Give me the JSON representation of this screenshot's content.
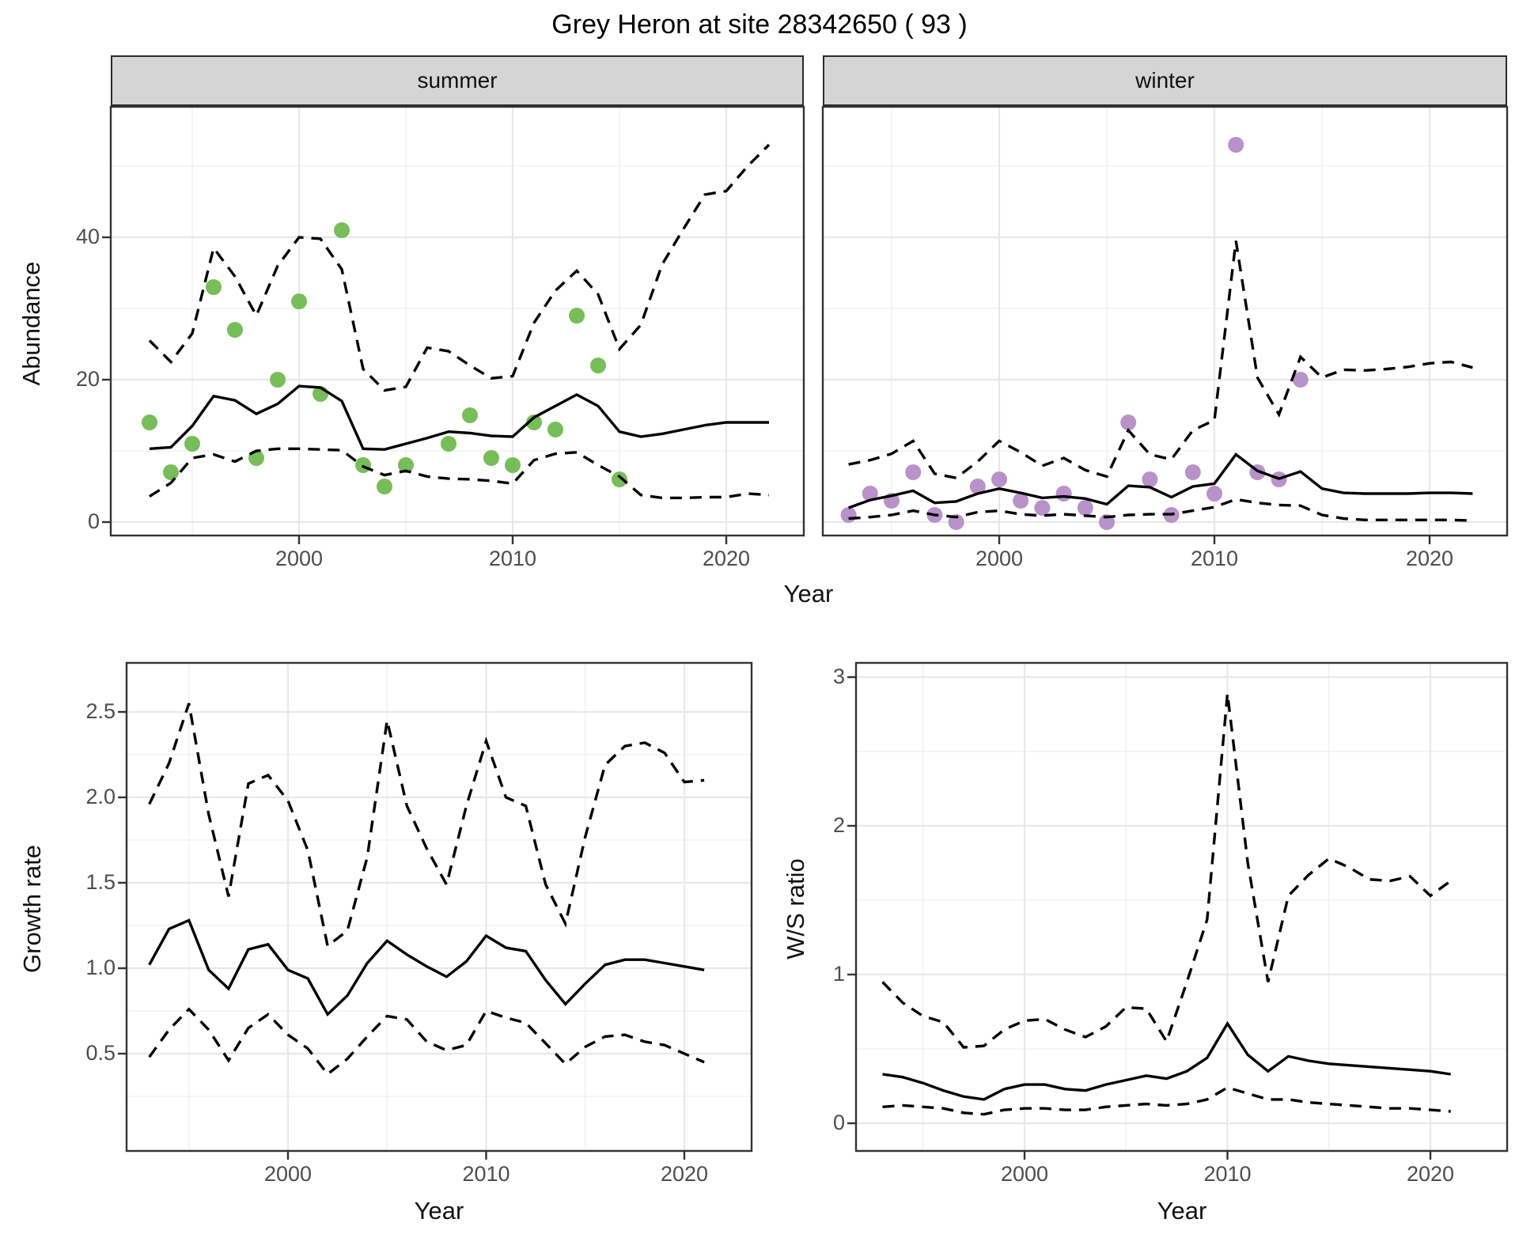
{
  "title": "Grey Heron at site 28342650 ( 93 )",
  "colors": {
    "summer_point": "#77bd59",
    "winter_point": "#b992c9",
    "line": "#000000",
    "grid_major": "#e8e8e8",
    "grid_minor": "#f2f2f2",
    "strip_bg": "#d5d5d5",
    "panel_border": "#333333",
    "axis_text": "#4d4d4d"
  },
  "top_row": {
    "facets": [
      "summer",
      "winter"
    ],
    "ylabel": "Abundance",
    "xlabel": "Year",
    "yticks": [
      "0",
      "20",
      "40"
    ],
    "xticks": [
      "2000",
      "2010",
      "2020"
    ]
  },
  "bottom_left": {
    "ylabel": "Growth rate",
    "xlabel": "Year",
    "yticks": [
      "0.5",
      "1.0",
      "1.5",
      "2.0",
      "2.5"
    ],
    "xticks": [
      "2000",
      "2010",
      "2020"
    ]
  },
  "bottom_right": {
    "ylabel": "W/S ratio",
    "xlabel": "Year",
    "yticks": [
      "0",
      "1",
      "2",
      "3"
    ],
    "xticks": [
      "2000",
      "2010",
      "2020"
    ]
  },
  "chart_data": [
    {
      "type": "line",
      "title": "summer abundance",
      "xlabel": "Year",
      "ylabel": "Abundance",
      "xlim": [
        1991.7,
        2023.6
      ],
      "ylim": [
        0,
        58
      ],
      "x_start": 1993,
      "points": [
        [
          1993,
          14
        ],
        [
          1994,
          7
        ],
        [
          1995,
          11
        ],
        [
          1996,
          33
        ],
        [
          1997,
          27
        ],
        [
          1998,
          9
        ],
        [
          1999,
          20
        ],
        [
          2000,
          31
        ],
        [
          2001,
          18
        ],
        [
          2002,
          41
        ],
        [
          2003,
          8
        ],
        [
          2004,
          5
        ],
        [
          2005,
          8
        ],
        [
          2007,
          11
        ],
        [
          2008,
          15
        ],
        [
          2009,
          9
        ],
        [
          2010,
          8
        ],
        [
          2011,
          14
        ],
        [
          2012,
          13
        ],
        [
          2013,
          29
        ],
        [
          2014,
          22
        ],
        [
          2015,
          6
        ]
      ],
      "series": [
        {
          "name": "fit",
          "style": "solid",
          "values": [
            10.3,
            10.5,
            13.5,
            17.7,
            17.1,
            15.2,
            16.6,
            19.1,
            18.9,
            17.0,
            10.3,
            10.2,
            11.0,
            11.8,
            12.7,
            12.5,
            12.1,
            12.0,
            14.7,
            16.3,
            17.9,
            16.3,
            12.7,
            12.0,
            12.4,
            13.0,
            13.6,
            14.0,
            14.0,
            14.0
          ]
        },
        {
          "name": "upper_ci",
          "style": "dashed",
          "values": [
            25.5,
            22.5,
            26.5,
            38.5,
            34.5,
            29.0,
            36.0,
            40.0,
            39.8,
            35.5,
            21.5,
            18.5,
            19.0,
            24.5,
            24.0,
            22.0,
            20.2,
            20.5,
            28.0,
            32.5,
            35.3,
            32.0,
            24.3,
            27.7,
            36.2,
            41.2,
            46.0,
            46.5,
            50.0,
            53.0
          ]
        },
        {
          "name": "lower_ci",
          "style": "dashed",
          "values": [
            3.6,
            5.5,
            9.0,
            9.5,
            8.5,
            10.0,
            10.3,
            10.3,
            10.2,
            10.1,
            7.8,
            6.6,
            7.2,
            6.4,
            6.1,
            6.0,
            5.8,
            5.4,
            8.7,
            9.6,
            9.8,
            8.0,
            6.4,
            3.8,
            3.4,
            3.4,
            3.5,
            3.5,
            4.0,
            3.8
          ]
        }
      ]
    },
    {
      "type": "line",
      "title": "winter abundance",
      "xlabel": "Year",
      "ylabel": "Abundance",
      "xlim": [
        1991.7,
        2023.6
      ],
      "ylim": [
        0,
        58
      ],
      "x_start": 1993,
      "points": [
        [
          1993,
          1
        ],
        [
          1994,
          4
        ],
        [
          1995,
          3
        ],
        [
          1996,
          7
        ],
        [
          1997,
          1
        ],
        [
          1998,
          0
        ],
        [
          1999,
          5
        ],
        [
          2000,
          6
        ],
        [
          2001,
          3
        ],
        [
          2002,
          2
        ],
        [
          2003,
          4
        ],
        [
          2004,
          2
        ],
        [
          2005,
          0
        ],
        [
          2006,
          14
        ],
        [
          2007,
          6
        ],
        [
          2008,
          1
        ],
        [
          2009,
          7
        ],
        [
          2010,
          4
        ],
        [
          2011,
          53
        ],
        [
          2012,
          7
        ],
        [
          2013,
          6
        ],
        [
          2014,
          20
        ]
      ],
      "series": [
        {
          "name": "fit",
          "style": "solid",
          "values": [
            2.0,
            3.1,
            3.7,
            4.4,
            2.7,
            2.9,
            4.0,
            4.7,
            4.1,
            3.4,
            3.6,
            3.3,
            2.5,
            5.1,
            4.9,
            3.5,
            5.0,
            5.4,
            9.5,
            7.2,
            6.1,
            7.1,
            4.7,
            4.1,
            4.0,
            4.0,
            4.0,
            4.1,
            4.1,
            4.0
          ]
        },
        {
          "name": "upper_ci",
          "style": "dashed",
          "values": [
            8.1,
            8.7,
            9.6,
            11.4,
            6.8,
            6.2,
            8.5,
            11.4,
            9.8,
            7.9,
            9.0,
            7.3,
            6.4,
            12.9,
            9.5,
            8.8,
            12.9,
            14.3,
            39.5,
            20.3,
            15.1,
            23.2,
            20.3,
            21.4,
            21.3,
            21.5,
            21.8,
            22.3,
            22.5,
            21.7
          ]
        },
        {
          "name": "lower_ci",
          "style": "dashed",
          "values": [
            0.5,
            0.7,
            1.0,
            1.6,
            1.0,
            0.7,
            1.4,
            1.6,
            1.1,
            0.9,
            1.1,
            0.9,
            0.7,
            1.0,
            1.1,
            1.1,
            1.6,
            2.1,
            3.2,
            2.7,
            2.4,
            2.3,
            1.0,
            0.5,
            0.3,
            0.3,
            0.3,
            0.3,
            0.3,
            0.2
          ]
        }
      ]
    },
    {
      "type": "line",
      "title": "growth rate",
      "xlabel": "Year",
      "ylabel": "Growth rate",
      "xlim": [
        1991.8,
        2023.4
      ],
      "ylim": [
        0.3,
        2.66
      ],
      "x_start": 1993,
      "series": [
        {
          "name": "fit",
          "style": "solid",
          "values": [
            1.02,
            1.23,
            1.28,
            0.99,
            0.88,
            1.11,
            1.14,
            0.99,
            0.94,
            0.73,
            0.84,
            1.03,
            1.16,
            1.08,
            1.01,
            0.95,
            1.04,
            1.19,
            1.12,
            1.1,
            0.93,
            0.79,
            0.91,
            1.02,
            1.05,
            1.05,
            1.03,
            1.01,
            0.99
          ]
        },
        {
          "name": "upper_ci",
          "style": "dashed",
          "values": [
            1.96,
            2.2,
            2.55,
            1.9,
            1.42,
            2.08,
            2.13,
            1.98,
            1.69,
            1.13,
            1.22,
            1.65,
            2.45,
            1.95,
            1.7,
            1.49,
            1.95,
            2.33,
            2.0,
            1.95,
            1.49,
            1.26,
            1.77,
            2.19,
            2.3,
            2.32,
            2.26,
            2.09,
            2.1
          ]
        },
        {
          "name": "lower_ci",
          "style": "dashed",
          "values": [
            0.48,
            0.64,
            0.76,
            0.64,
            0.46,
            0.65,
            0.73,
            0.61,
            0.53,
            0.38,
            0.47,
            0.6,
            0.72,
            0.7,
            0.57,
            0.52,
            0.55,
            0.75,
            0.71,
            0.68,
            0.56,
            0.44,
            0.54,
            0.6,
            0.61,
            0.57,
            0.55,
            0.5,
            0.45
          ]
        }
      ]
    },
    {
      "type": "line",
      "title": "winter/summer ratio",
      "xlabel": "Year",
      "ylabel": "W/S ratio",
      "xlim": [
        1991.7,
        2023.8
      ],
      "ylim": [
        0,
        3.1
      ],
      "x_start": 1993,
      "series": [
        {
          "name": "fit",
          "style": "solid",
          "values": [
            0.33,
            0.31,
            0.27,
            0.22,
            0.18,
            0.16,
            0.23,
            0.26,
            0.26,
            0.23,
            0.22,
            0.26,
            0.29,
            0.32,
            0.3,
            0.35,
            0.44,
            0.67,
            0.46,
            0.35,
            0.45,
            0.42,
            0.4,
            0.39,
            0.38,
            0.37,
            0.36,
            0.35,
            0.33
          ]
        },
        {
          "name": "upper_ci",
          "style": "dashed",
          "values": [
            0.95,
            0.81,
            0.72,
            0.68,
            0.51,
            0.52,
            0.63,
            0.69,
            0.7,
            0.63,
            0.58,
            0.65,
            0.78,
            0.77,
            0.55,
            0.95,
            1.37,
            2.89,
            1.75,
            0.95,
            1.53,
            1.67,
            1.78,
            1.72,
            1.64,
            1.63,
            1.66,
            1.53,
            1.63
          ]
        },
        {
          "name": "lower_ci",
          "style": "dashed",
          "values": [
            0.11,
            0.12,
            0.11,
            0.1,
            0.07,
            0.06,
            0.09,
            0.1,
            0.1,
            0.09,
            0.09,
            0.11,
            0.12,
            0.13,
            0.12,
            0.13,
            0.16,
            0.24,
            0.2,
            0.16,
            0.16,
            0.14,
            0.13,
            0.12,
            0.11,
            0.1,
            0.1,
            0.09,
            0.08
          ]
        }
      ]
    }
  ]
}
